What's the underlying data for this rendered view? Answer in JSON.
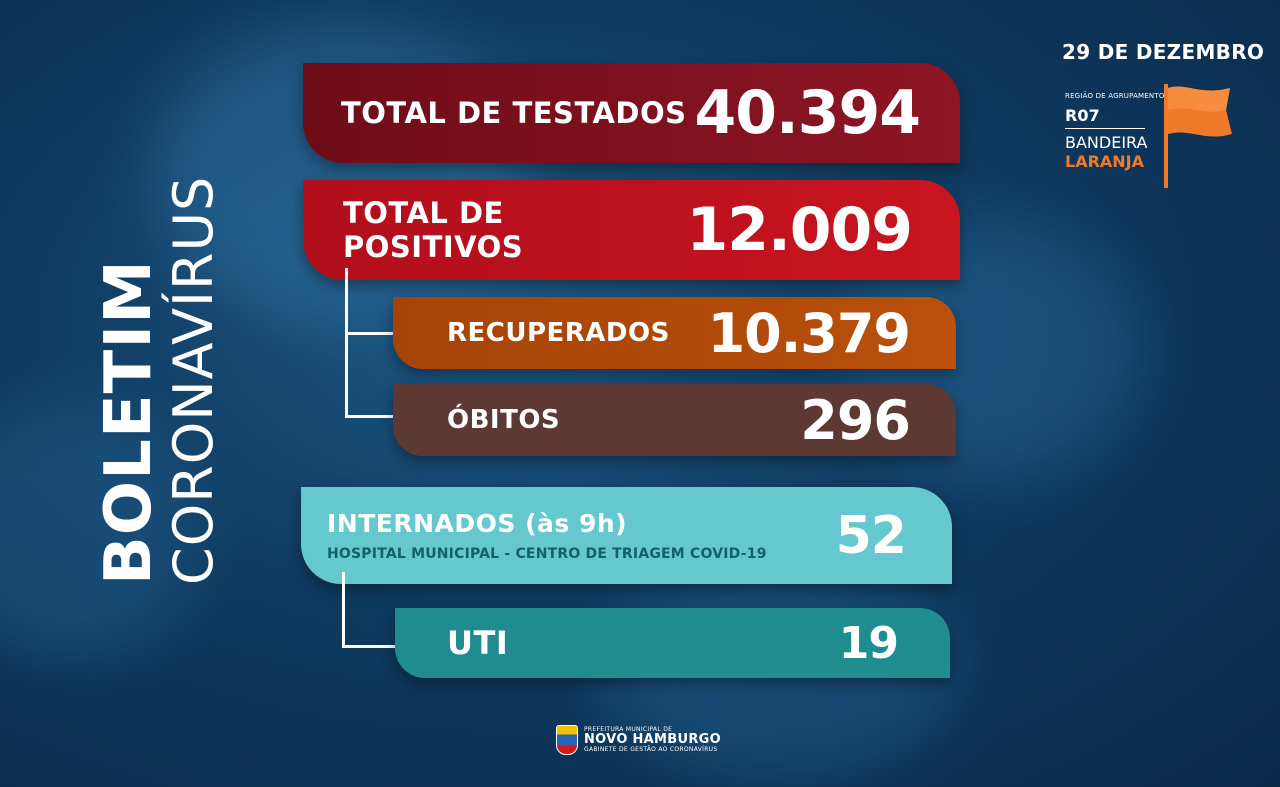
{
  "side_title": {
    "line1": "BOLETIM",
    "line2": "CORONAVÍRUS"
  },
  "date": "29 DE DEZEMBRO",
  "region": {
    "caption": "REGIÃO DE AGRUPAMENTO",
    "code": "R07",
    "flag_label": "BANDEIRA",
    "flag_color": "LARANJA",
    "flag_hex": "#f07a2a"
  },
  "stats": {
    "testados": {
      "label": "TOTAL DE TESTADOS",
      "value": "40.394"
    },
    "positivos": {
      "label": "TOTAL DE POSITIVOS",
      "value": "12.009"
    },
    "recuperados": {
      "label": "RECUPERADOS",
      "value": "10.379"
    },
    "obitos": {
      "label": "ÓBITOS",
      "value": "296"
    },
    "internados": {
      "label": "INTERNADOS (às 9h)",
      "sublabel": "HOSPITAL MUNICIPAL - CENTRO DE TRIAGEM COVID-19",
      "value": "52"
    },
    "uti": {
      "label": "UTI",
      "value": "19"
    }
  },
  "footer": {
    "small": "PREFEITURA MUNICIPAL DE",
    "main": "NOVO HAMBURGO",
    "sub": "GABINETE DE GESTÃO AO CORONAVÍRUS"
  }
}
